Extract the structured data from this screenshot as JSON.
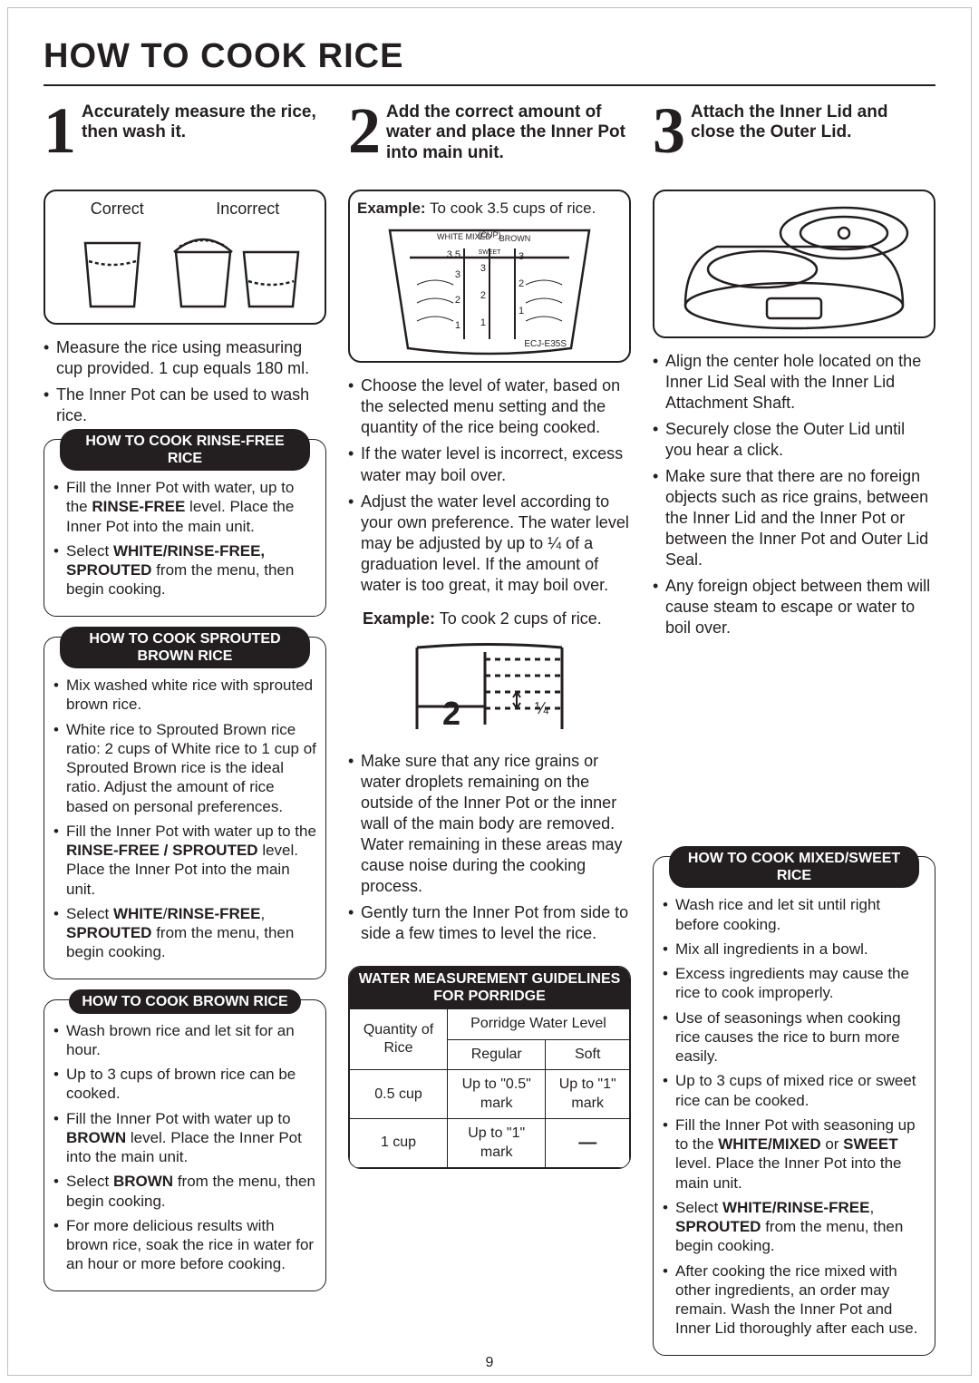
{
  "page_number": "9",
  "title": "HOW TO COOK RICE",
  "steps": [
    {
      "num": "1",
      "title": "Accurately measure the rice, then wash it.",
      "illus_labels": {
        "correct": "Correct",
        "incorrect": "Incorrect"
      },
      "bullets": [
        "Measure the rice using measuring cup provided. 1 cup equals 180 ml.",
        "The Inner Pot can be used to wash rice."
      ],
      "callouts": [
        {
          "title": "HOW TO COOK RINSE-FREE RICE",
          "items": [
            "Fill the Inner Pot with water, up to the <b>RINSE-FREE</b> level. Place the Inner Pot into the main unit.",
            "Select <b>WHITE/RINSE-FREE, SPROUTED</b> from the menu, then begin cooking."
          ]
        },
        {
          "title": "HOW TO COOK SPROUTED BROWN RICE",
          "items": [
            "Mix washed white rice with sprouted brown rice.",
            "White rice to Sprouted Brown rice ratio:  2 cups of White rice to 1 cup of Sprouted Brown rice is the ideal ratio. Adjust the amount of rice based on personal preferences.",
            "Fill the Inner Pot with water up to the <b>RINSE-FREE / SPROUTED</b> level.  Place the Inner Pot into the main unit.",
            "Select <b>WHITE</b>/<b>RINSE-FREE</b>, <b>SPROUTED</b> from the menu, then begin cooking."
          ]
        },
        {
          "title": "HOW TO COOK BROWN RICE",
          "items": [
            "Wash brown rice and let sit for an hour.",
            "Up to 3 cups of brown rice can be cooked.",
            "Fill the Inner Pot with water up to <b>BROWN</b> level.  Place the Inner Pot into the main unit.",
            "Select <b>BROWN</b> from the menu, then begin cooking.",
            "For more delicious results with brown rice, soak the rice in water for an hour or more before cooking."
          ]
        }
      ]
    },
    {
      "num": "2",
      "title": "Add the correct amount of water and place the Inner Pot into main unit.",
      "example1_prefix": "Example:",
      "example1_text": " To cook 3.5 cups of rice.",
      "pot_labels": {
        "white": "WHITE\nMIXED",
        "cup": "(CUP)",
        "brown": "BROWN",
        "sweet": "SWEET",
        "model": "ECJ-E35S",
        "left_ticks": [
          "3.5",
          "3",
          "2",
          "1"
        ],
        "mid_ticks": [
          "3",
          "2",
          "1"
        ],
        "right_ticks": [
          "3",
          "2",
          "1"
        ]
      },
      "bullets_a": [
        "Choose the level of water, based on the selected menu setting and the quantity of the rice being cooked.",
        "If the water level is incorrect, excess water may boil over.",
        "Adjust the water level according to your own preference. The water level may be adjusted by up to ¼ of a graduation level. If the amount of water is too great, it may boil over."
      ],
      "example2_prefix": "Example:",
      "example2_text": " To cook 2 cups of rice.",
      "scale_labels": {
        "big2": "2",
        "quarter": "¼"
      },
      "bullets_b": [
        "Make sure that any rice grains or water droplets remaining on the outside of the Inner Pot or the inner wall of the main body are removed.  Water remaining in these areas may cause noise during the cooking process.",
        "Gently turn the Inner Pot from side to side a few times to level the rice."
      ],
      "porridge": {
        "title": "WATER MEASUREMENT GUIDELINES FOR PORRIDGE",
        "col_qty": "Quantity of Rice",
        "col_level": "Porridge Water Level",
        "col_reg": "Regular",
        "col_soft": "Soft",
        "rows": [
          {
            "qty": "0.5 cup",
            "reg": "Up to \"0.5\" mark",
            "soft": "Up to \"1\" mark"
          },
          {
            "qty": "1 cup",
            "reg": "Up to \"1\" mark",
            "soft": "—"
          }
        ]
      }
    },
    {
      "num": "3",
      "title": "Attach the Inner Lid and close the Outer Lid.",
      "bullets": [
        "Align the center hole located on the Inner Lid Seal with the Inner Lid Attachment Shaft.",
        "Securely close the Outer Lid until you hear a click.",
        "Make sure that there are no foreign objects such as rice grains, between the Inner Lid and the Inner Pot or between the Inner Pot and Outer Lid Seal.",
        "Any foreign object between them will cause steam to escape or water to boil over."
      ],
      "callout": {
        "title": "HOW TO COOK MIXED/SWEET RICE",
        "items": [
          "Wash rice and let sit until right before cooking.",
          "Mix all ingredients in a bowl.",
          "Excess ingredients may cause the rice to cook improperly.",
          "Use of seasonings when cooking rice causes the rice to burn more easily.",
          "Up to 3 cups of mixed rice or sweet rice can be cooked.",
          "Fill the Inner Pot with seasoning up to the <b>WHITE/MIXED</b> or <b>SWEET</b> level.  Place the Inner Pot into the main unit.",
          "Select <b>WHITE/RINSE-FREE</b>, <b>SPROUTED</b> from the menu, then begin cooking.",
          "After cooking the rice mixed with other ingredients, an order may remain.  Wash the Inner Pot and Inner Lid thoroughly after each use."
        ]
      }
    }
  ],
  "colors": {
    "ink": "#231f20",
    "paper": "#ffffff",
    "frame": "#c0c0c0"
  },
  "typography": {
    "body_pt": 18,
    "title_pt": 38,
    "step_title_pt": 19,
    "big_num_pt": 72
  }
}
